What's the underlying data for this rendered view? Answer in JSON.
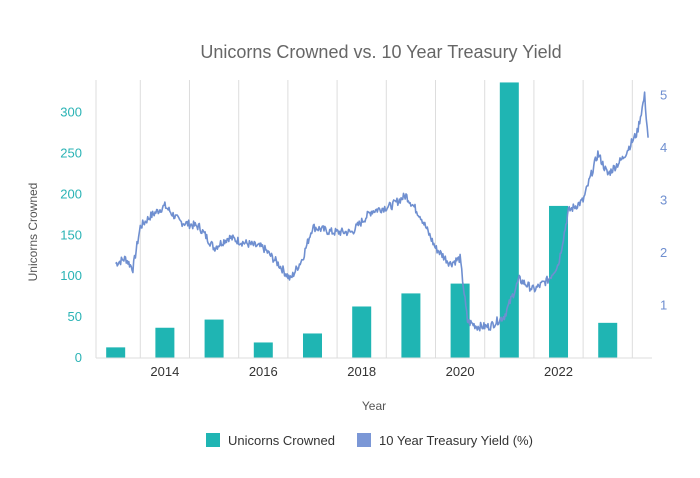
{
  "chart_data": {
    "type": "bar+line",
    "title": "Unicorns Crowned vs. 10 Year Treasury Yield",
    "xlabel": "Year",
    "ylabel": "Unicorns Crowned",
    "ylim": [
      0,
      340
    ],
    "y2lim": [
      0,
      5.3
    ],
    "xlim": [
      2012.6,
      2023.9
    ],
    "yticks": [
      0,
      50,
      100,
      150,
      200,
      250,
      300
    ],
    "y2ticks": [
      1,
      2,
      3,
      4,
      5
    ],
    "xticks": [
      2014,
      2016,
      2018,
      2020,
      2022
    ],
    "colors": {
      "bar": "#1fb5b3",
      "line": "#6f8fd0",
      "grid": "#dddddd"
    },
    "legend": [
      {
        "label": "Unicorns Crowned",
        "shape": "square",
        "color": "#1fb5b3"
      },
      {
        "label": "10 Year Treasury Yield (%)",
        "shape": "square",
        "color": "#7b97d6"
      }
    ],
    "bars": {
      "name": "Unicorns Crowned",
      "x": [
        2013,
        2014,
        2015,
        2016,
        2017,
        2018,
        2019,
        2020,
        2021,
        2022,
        2023
      ],
      "values": [
        13,
        37,
        47,
        19,
        30,
        63,
        79,
        91,
        337,
        186,
        43
      ]
    },
    "line": {
      "name": "10 Year Treasury Yield (%)",
      "x": [
        2013.0,
        2013.2,
        2013.35,
        2013.5,
        2013.7,
        2014.0,
        2014.3,
        2014.7,
        2015.0,
        2015.3,
        2015.6,
        2016.0,
        2016.3,
        2016.55,
        2016.8,
        2017.0,
        2017.4,
        2017.8,
        2018.2,
        2018.6,
        2018.9,
        2019.2,
        2019.5,
        2019.8,
        2020.0,
        2020.15,
        2020.35,
        2020.6,
        2020.9,
        2021.2,
        2021.5,
        2021.8,
        2022.0,
        2022.2,
        2022.5,
        2022.8,
        2023.0,
        2023.3,
        2023.6,
        2023.75,
        2023.82
      ],
      "values": [
        1.8,
        1.9,
        1.7,
        2.5,
        2.7,
        2.9,
        2.6,
        2.5,
        2.1,
        2.3,
        2.2,
        2.1,
        1.8,
        1.5,
        1.9,
        2.5,
        2.4,
        2.4,
        2.8,
        2.9,
        3.1,
        2.7,
        2.1,
        1.8,
        1.9,
        0.7,
        0.6,
        0.6,
        0.8,
        1.5,
        1.3,
        1.5,
        1.8,
        2.8,
        3.0,
        3.9,
        3.5,
        3.8,
        4.3,
        5.0,
        4.2
      ]
    }
  }
}
